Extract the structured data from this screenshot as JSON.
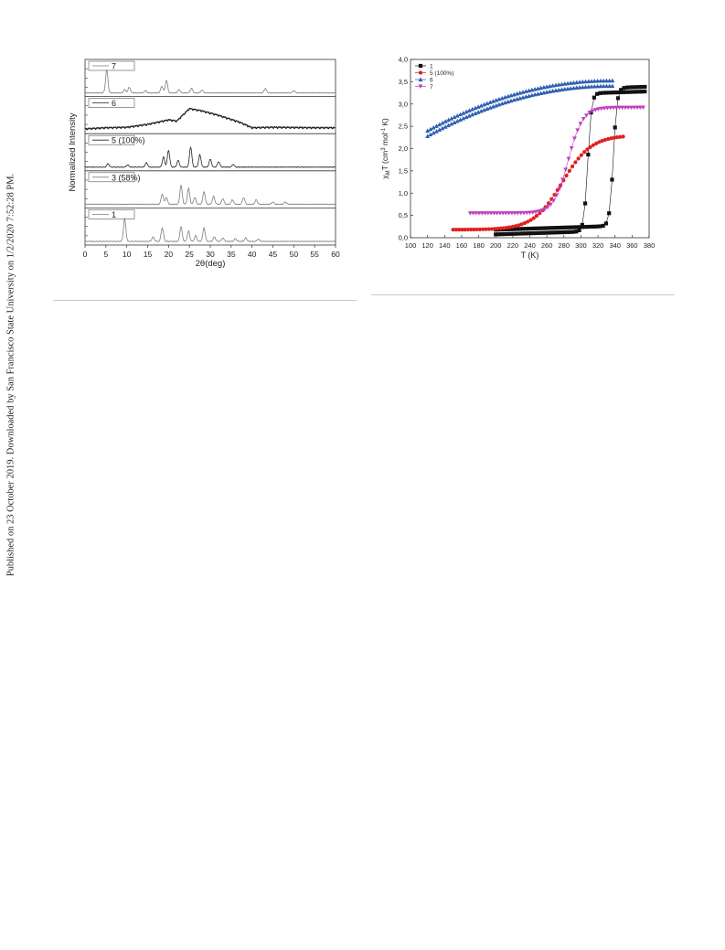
{
  "side_note": "Published on 23 October 2019. Downloaded by San Francisco State University on 1/2/2020 7:52:28 PM.",
  "chart_data": [
    {
      "type": "line",
      "xlabel": "2θ(deg)",
      "ylabel": "Normalized Intensity",
      "xlim": [
        0,
        60
      ],
      "xticks": [
        0,
        5,
        10,
        15,
        20,
        25,
        30,
        35,
        40,
        45,
        50,
        55,
        60
      ],
      "grid": false,
      "legend": "stacked panels, label box at top-left of each panel",
      "panels": [
        {
          "name": "7",
          "peaks": [
            [
              5.2,
              1.0
            ],
            [
              9.5,
              0.15
            ],
            [
              10.6,
              0.25
            ],
            [
              14.5,
              0.1
            ],
            [
              18.4,
              0.3
            ],
            [
              19.5,
              0.55
            ],
            [
              22.5,
              0.15
            ],
            [
              25.5,
              0.2
            ],
            [
              28.0,
              0.12
            ],
            [
              43.2,
              0.2
            ],
            [
              50.0,
              0.1
            ]
          ],
          "color": "#7d7d7d"
        },
        {
          "name": "6",
          "profile": [
            [
              0,
              0.05
            ],
            [
              5,
              0.1
            ],
            [
              10,
              0.12
            ],
            [
              15,
              0.25
            ],
            [
              20,
              0.45
            ],
            [
              22,
              0.4
            ],
            [
              25,
              0.95
            ],
            [
              28,
              0.85
            ],
            [
              32,
              0.65
            ],
            [
              37,
              0.35
            ],
            [
              40,
              0.1
            ],
            [
              45,
              0.12
            ],
            [
              55,
              0.1
            ],
            [
              60,
              0.1
            ]
          ],
          "color": "#222222"
        },
        {
          "name": "5 (100%)",
          "peaks": [
            [
              5.5,
              0.15
            ],
            [
              10.2,
              0.1
            ],
            [
              14.7,
              0.2
            ],
            [
              18.8,
              0.45
            ],
            [
              20.0,
              0.75
            ],
            [
              22.3,
              0.3
            ],
            [
              25.3,
              0.9
            ],
            [
              27.5,
              0.55
            ],
            [
              30.0,
              0.35
            ],
            [
              32.0,
              0.25
            ],
            [
              35.5,
              0.12
            ]
          ],
          "color": "#222222"
        },
        {
          "name": "3 (58%)",
          "peaks": [
            [
              18.5,
              0.45
            ],
            [
              19.5,
              0.3
            ],
            [
              23.0,
              0.85
            ],
            [
              24.8,
              0.7
            ],
            [
              26.3,
              0.3
            ],
            [
              28.5,
              0.55
            ],
            [
              30.8,
              0.35
            ],
            [
              33.0,
              0.25
            ],
            [
              35.3,
              0.2
            ],
            [
              38.0,
              0.3
            ],
            [
              41.0,
              0.2
            ],
            [
              45.0,
              0.1
            ],
            [
              48.0,
              0.1
            ]
          ],
          "color": "#7d7d7d"
        },
        {
          "name": "1",
          "peaks": [
            [
              9.5,
              1.0
            ],
            [
              16.3,
              0.2
            ],
            [
              18.5,
              0.6
            ],
            [
              23.0,
              0.65
            ],
            [
              24.8,
              0.45
            ],
            [
              26.5,
              0.25
            ],
            [
              28.5,
              0.6
            ],
            [
              31.0,
              0.2
            ],
            [
              33.0,
              0.15
            ],
            [
              36.0,
              0.12
            ],
            [
              38.5,
              0.15
            ],
            [
              41.5,
              0.1
            ]
          ],
          "color": "#7d7d7d"
        }
      ]
    },
    {
      "type": "scatter",
      "xlabel": "T (K)",
      "ylabel": "χMT (cm³ mol⁻¹ K)",
      "ylabel_main": "χ",
      "ylabel_sub": "M",
      "ylabel_rest": "T (cm",
      "ylabel_sup1": "3",
      "ylabel_mid": " mol",
      "ylabel_sup2": "-1",
      "ylabel_end": " K)",
      "xlim": [
        100,
        380
      ],
      "ylim": [
        0,
        4
      ],
      "xticks": [
        100,
        120,
        140,
        160,
        180,
        200,
        220,
        240,
        260,
        280,
        300,
        320,
        340,
        360,
        380
      ],
      "yticks": [
        "0,0",
        "0,5",
        "1,0",
        "1,5",
        "2,0",
        "2,5",
        "3,0",
        "3,5",
        "4,0"
      ],
      "grid": false,
      "legend": "top-left",
      "series": [
        {
          "name": "1",
          "color": "#111111",
          "marker": "square",
          "branches": [
            {
              "from": 200,
              "to": 375,
              "mid": 338,
              "width": 2.2,
              "low": 0.18,
              "high": 3.28,
              "slope": 0.0006
            },
            {
              "from": 375,
              "to": 200,
              "mid": 308,
              "width": 2.2,
              "low": 0.18,
              "high": 3.28,
              "slope": 0.0006
            }
          ]
        },
        {
          "name": "5 (100%)",
          "color": "#e02020",
          "marker": "circle",
          "branches": [
            {
              "from": 150,
              "to": 350,
              "mid": 278,
              "width": 17,
              "low": 0.18,
              "high": 2.3,
              "slope": 0.0
            }
          ]
        },
        {
          "name": "6",
          "color": "#2f5fb0",
          "marker": "triangle-up",
          "branches": [
            {
              "from": 120,
              "to": 340,
              "poly": [
                2.28,
                0.0105,
                -2.45e-05
              ],
              "offset": 0.0
            },
            {
              "from": 340,
              "to": 120,
              "poly": [
                2.28,
                0.0105,
                -2.45e-05
              ],
              "offset": 0.12
            }
          ]
        },
        {
          "name": "7",
          "color": "#c040c0",
          "marker": "triangle-down",
          "branches": [
            {
              "from": 170,
              "to": 375,
              "mid": 285,
              "width": 8.5,
              "low": 0.55,
              "high": 2.92,
              "slope": 0.0
            }
          ]
        }
      ]
    }
  ]
}
